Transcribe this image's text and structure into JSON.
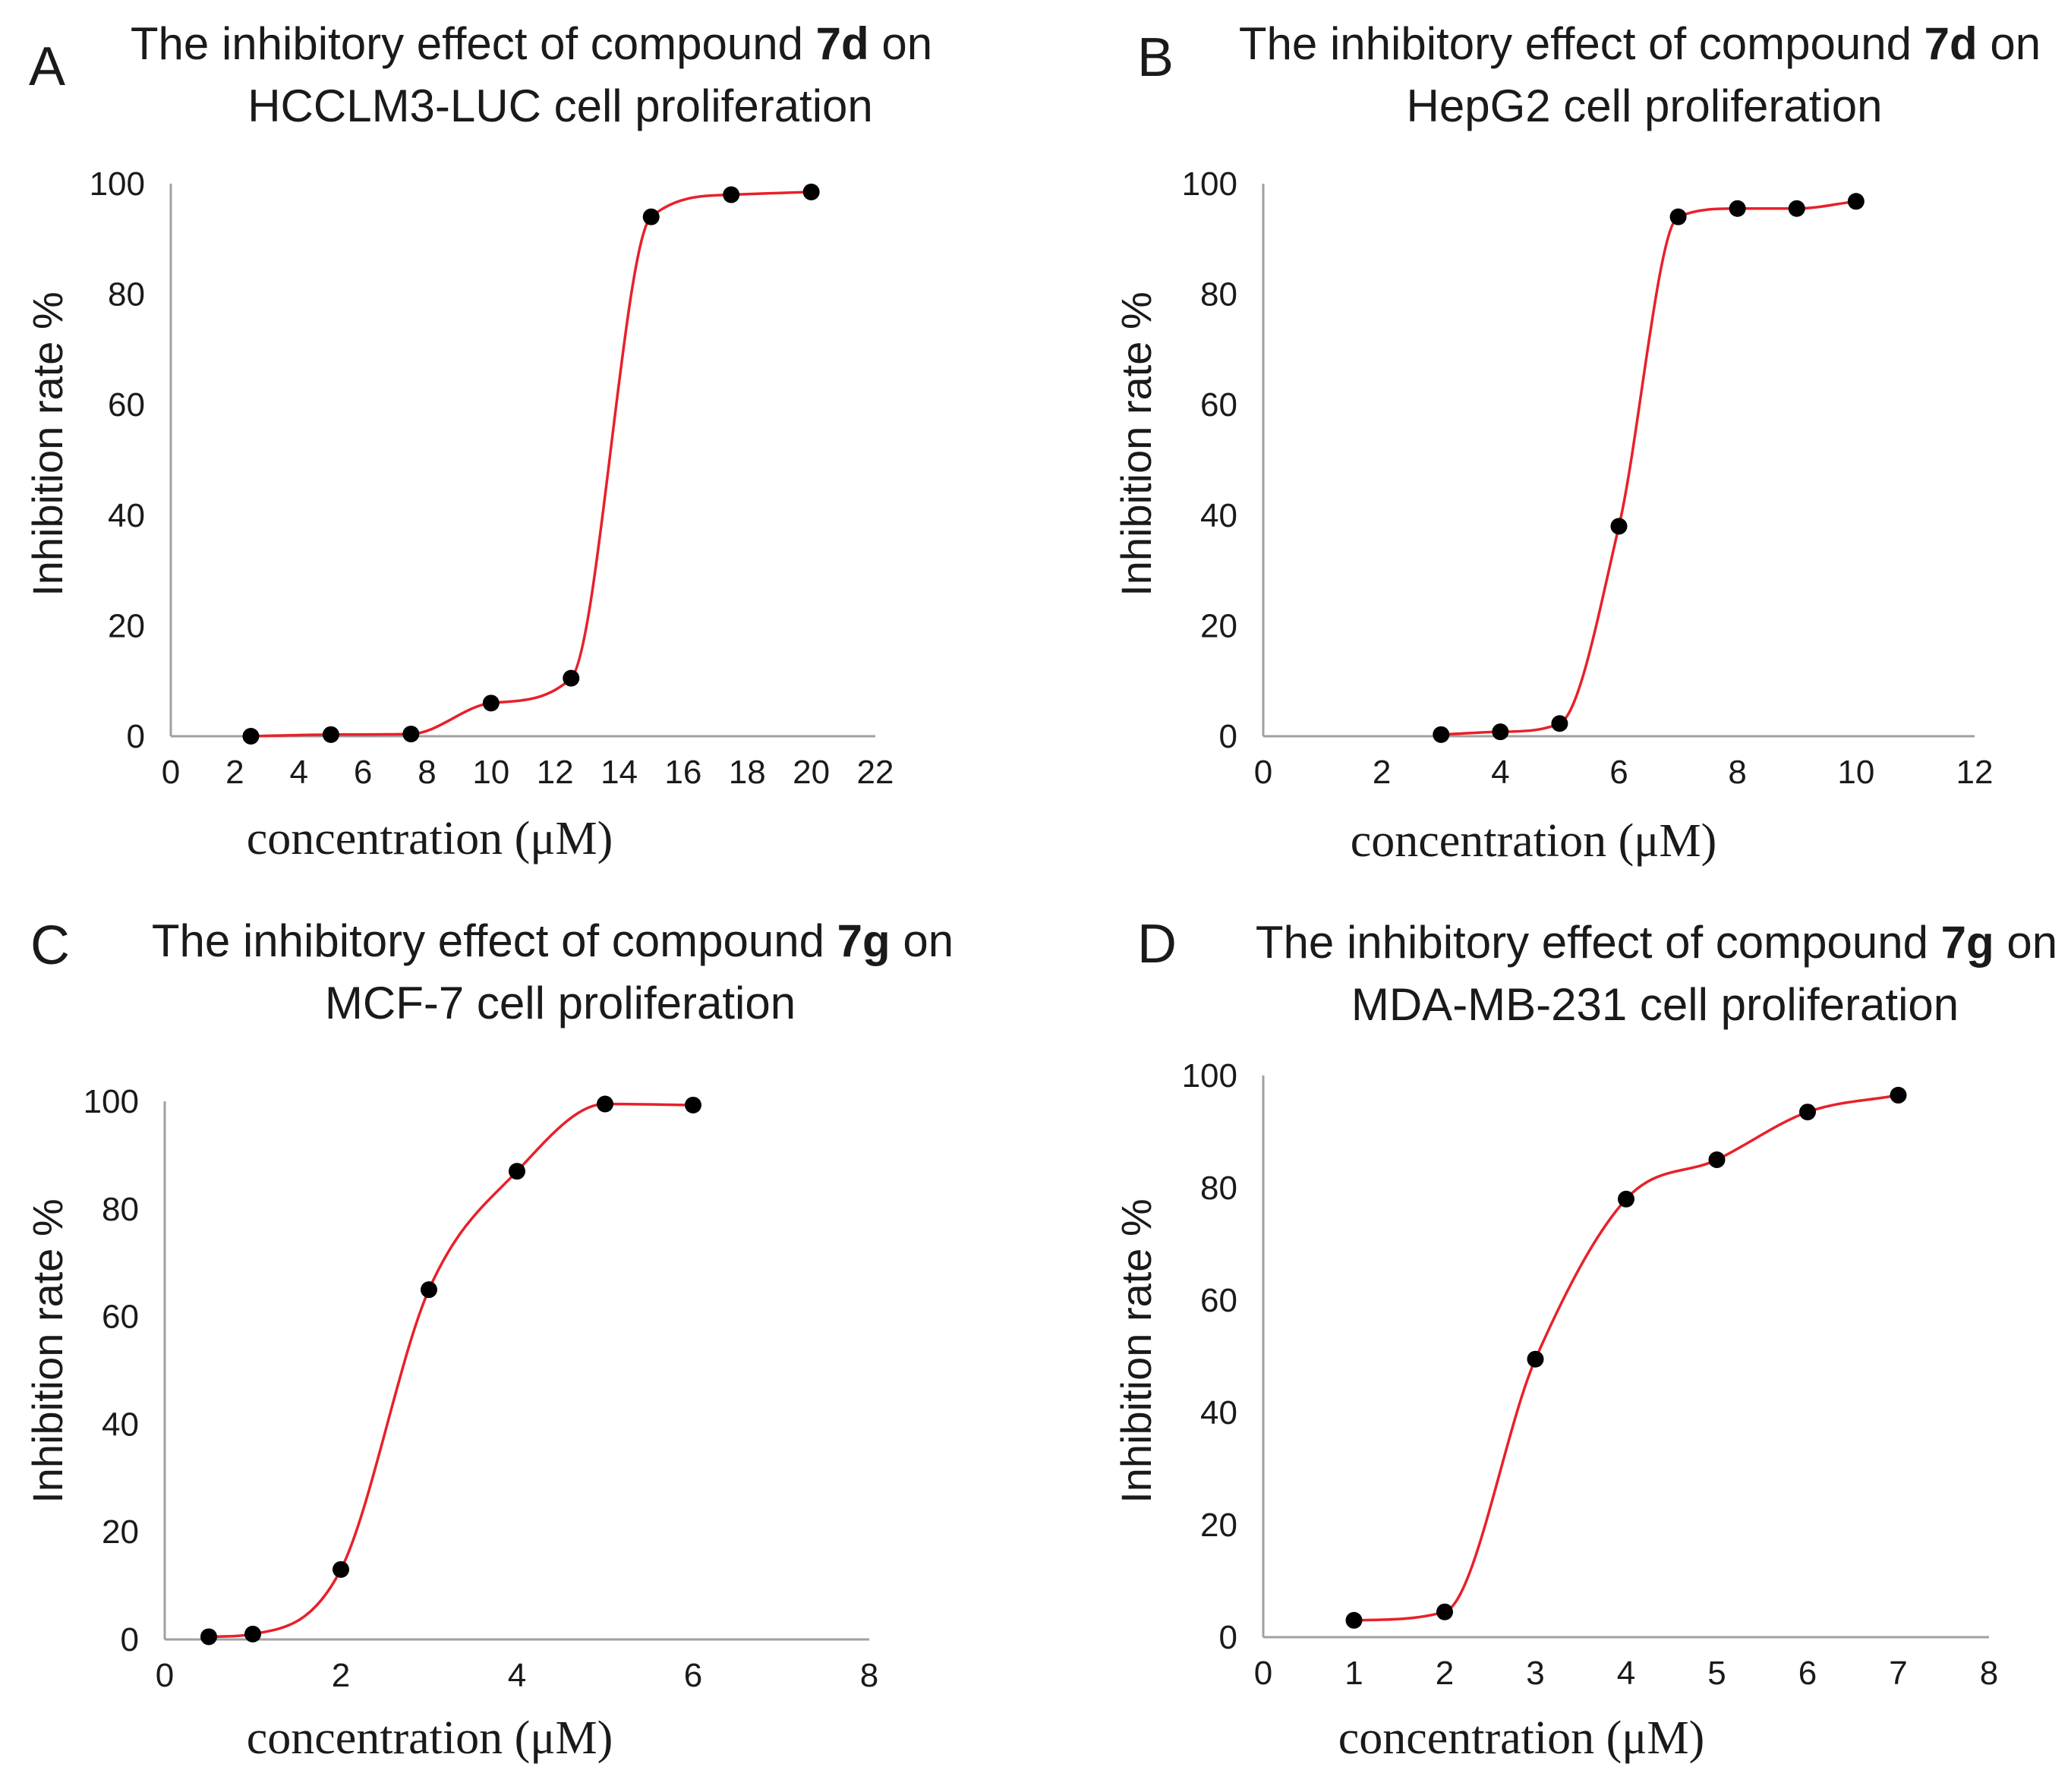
{
  "chart_data": [
    {
      "panel": "A",
      "type": "line",
      "title": "The inhibitory effect of compound 7d on HCCLM3-LUC cell proliferation",
      "title_line1_prefix": "The inhibitory effect of compound ",
      "title_compound": "7d",
      "title_line1_suffix": " on",
      "title_line2": "HCCLM3-LUC cell proliferation",
      "xlabel": "concentration (μM)",
      "ylabel": "Inhibition rate %",
      "xlim": [
        0,
        22
      ],
      "ylim": [
        0,
        100
      ],
      "x_ticks": [
        "0",
        "2",
        "4",
        "6",
        "8",
        "10",
        "12",
        "14",
        "16",
        "18",
        "20",
        "22"
      ],
      "y_ticks": [
        "0",
        "20",
        "40",
        "60",
        "80",
        "100"
      ],
      "x": [
        2.5,
        5,
        7.5,
        10,
        12.5,
        15,
        17.5,
        20
      ],
      "y": [
        0,
        0.3,
        0.4,
        6,
        10.5,
        94,
        98,
        98.5
      ],
      "curve_color": "#e8202a",
      "marker_color": "#000000"
    },
    {
      "panel": "B",
      "type": "line",
      "title": "The inhibitory effect of compound 7d on HepG2 cell proliferation",
      "title_line1_prefix": "The inhibitory effect of compound ",
      "title_compound": "7d",
      "title_line1_suffix": " on",
      "title_line2": "HepG2 cell proliferation",
      "xlabel": "concentration (μM)",
      "ylabel": "Inhibition rate %",
      "xlim": [
        0,
        12
      ],
      "ylim": [
        0,
        100
      ],
      "x_ticks": [
        "0",
        "2",
        "4",
        "6",
        "8",
        "10",
        "12"
      ],
      "y_ticks": [
        "0",
        "20",
        "40",
        "60",
        "80",
        "100"
      ],
      "x": [
        3,
        4,
        5,
        6,
        7,
        8,
        9,
        10
      ],
      "y": [
        0.3,
        0.8,
        2.3,
        38,
        94,
        95.5,
        95.5,
        96.8
      ],
      "curve_color": "#e8202a",
      "marker_color": "#000000"
    },
    {
      "panel": "C",
      "type": "line",
      "title": "The inhibitory effect of compound 7g on MCF-7 cell proliferation",
      "title_line1_prefix": "The inhibitory effect of compound ",
      "title_compound": "7g",
      "title_line1_suffix": " on",
      "title_line2": "MCF-7 cell proliferation",
      "xlabel": "concentration (μM)",
      "ylabel": "Inhibition rate %",
      "xlim": [
        0,
        8
      ],
      "ylim": [
        0,
        100
      ],
      "x_ticks": [
        "0",
        "2",
        "4",
        "6",
        "8"
      ],
      "y_ticks": [
        "0",
        "20",
        "40",
        "60",
        "80",
        "100"
      ],
      "x": [
        0.5,
        1,
        2,
        3,
        4,
        5,
        6
      ],
      "y": [
        0.5,
        1,
        13,
        65,
        87,
        99.5,
        99.3
      ],
      "curve_color": "#e8202a",
      "marker_color": "#000000"
    },
    {
      "panel": "D",
      "type": "line",
      "title": "The inhibitory effect of compound 7g on MDA-MB-231 cell proliferation",
      "title_line1_prefix": "The inhibitory effect of compound ",
      "title_compound": "7g",
      "title_line1_suffix": " on",
      "title_line2": "MDA-MB-231 cell proliferation",
      "xlabel": "concentration (μM)",
      "ylabel": "Inhibition rate %",
      "xlim": [
        0,
        8
      ],
      "ylim": [
        0,
        100
      ],
      "x_ticks": [
        "0",
        "1",
        "2",
        "3",
        "4",
        "5",
        "6",
        "7",
        "8"
      ],
      "y_ticks": [
        "0",
        "20",
        "40",
        "60",
        "80",
        "100"
      ],
      "x": [
        1,
        2,
        3,
        4,
        5,
        6,
        7
      ],
      "y": [
        3,
        4.5,
        49.5,
        78,
        85,
        93.5,
        96.5
      ],
      "curve_color": "#e8202a",
      "marker_color": "#000000"
    }
  ]
}
